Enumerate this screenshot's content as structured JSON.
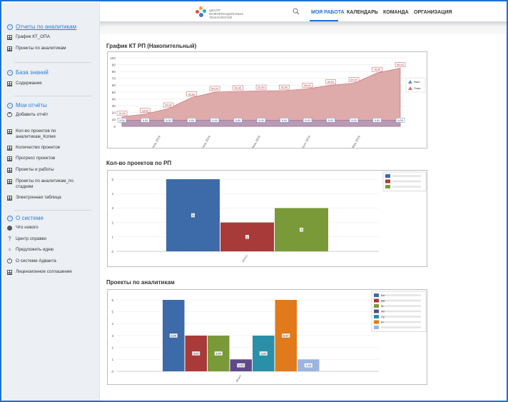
{
  "sidebar": {
    "sections": [
      {
        "title": "Отчеты по аналитикам",
        "items": [
          "График КТ_ОПА",
          "Проекты по аналитикам"
        ]
      },
      {
        "title": "База знаний",
        "items": [
          "Содержание"
        ]
      },
      {
        "title": "Мои отчёты",
        "items": [
          "Добавить отчёт",
          "Кол-во проектов по",
          "аналитикам_Копия",
          "Количество проектов",
          "Прогресс проектов",
          "Проекты и работы",
          "Проекты по аналитикам_по",
          "стадиям",
          "Электронная таблица"
        ]
      },
      {
        "title": "О системе",
        "items": [
          "Что нового",
          "Центр справки",
          "Предложить идею",
          "О системе Адванта",
          "Лицензионное соглашение"
        ]
      }
    ]
  },
  "header": {
    "logo_lines": [
      "ЦЕНТР",
      "ИНФОРМАЦИОННЫХ",
      "ТЕХНОЛОГИЙ"
    ],
    "nav": [
      "МОЯ РАБОТА",
      "КАЛЕНДАРЬ",
      "КОМАНДА",
      "ОРГАНИЗАЦИЯ"
    ],
    "search_icon": "search-icon"
  },
  "colors": {
    "accent": "#1e6fd9",
    "sidebar_link": "#2a7fd4",
    "plan_fill": "#d9a6a6",
    "fact_fill": "#b8a0b8"
  },
  "chart_data": [
    {
      "type": "area",
      "title": "График КТ РП (Накопительный)",
      "ylim": [
        0,
        100
      ],
      "yticks": [
        0,
        10,
        20,
        30,
        40,
        50,
        60,
        70,
        80,
        90,
        100
      ],
      "x_tick_labels": [
        "Февраль 2019",
        "Апрель 2019",
        "Июнь 2019",
        "Август 2019",
        "Октябрь 2019"
      ],
      "legend": [
        "Факт",
        "План"
      ],
      "series": [
        {
          "name": "План",
          "values": [
            14,
            18,
            26,
            42,
            50,
            51,
            52,
            52,
            55,
            60,
            63,
            78,
            85
          ],
          "labels": [
            "14,00",
            "18,00",
            "26,00",
            "42,00",
            "50,00",
            "51,00",
            "52,00",
            "52,00",
            "55,00",
            "60,00",
            "63,00",
            "78,00",
            "85,00"
          ]
        },
        {
          "name": "Факт",
          "values": [
            9,
            9,
            9,
            9,
            9,
            9,
            9,
            9,
            9,
            9,
            9,
            9,
            9
          ],
          "labels": [
            "9,00",
            "9,00",
            "9,00",
            "9,00",
            "9,00",
            "9,00",
            "9,00",
            "9,00",
            "9,00",
            "9,00",
            "9,00",
            "9,00",
            "9,00"
          ]
        }
      ]
    },
    {
      "type": "bar",
      "title": "Кол-во проектов по РП",
      "ylim": [
        0,
        5
      ],
      "yticks": [
        0,
        1,
        2,
        3,
        4,
        5
      ],
      "categories": [
        "Итого"
      ],
      "series": [
        {
          "values": [
            5
          ],
          "label": "5",
          "color": "#3d6aa8"
        },
        {
          "values": [
            2
          ],
          "label": "2",
          "color": "#a83a3a"
        },
        {
          "values": [
            3
          ],
          "label": "3",
          "color": "#7a9a3a"
        }
      ]
    },
    {
      "type": "bar",
      "title": "Проекты по аналитикам",
      "ylim": [
        0,
        6
      ],
      "yticks": [
        0,
        1,
        2,
        3,
        4,
        5,
        6
      ],
      "categories": [
        "Итого"
      ],
      "series": [
        {
          "values": [
            6
          ],
          "label": "6,00",
          "color": "#3d6aa8"
        },
        {
          "values": [
            3
          ],
          "label": "3,00",
          "color": "#a83a3a"
        },
        {
          "values": [
            3
          ],
          "label": "3,00",
          "color": "#7a9a3a"
        },
        {
          "values": [
            1
          ],
          "label": "1,00",
          "color": "#5e4a8a"
        },
        {
          "values": [
            3
          ],
          "label": "3,00",
          "color": "#2a8fa8"
        },
        {
          "values": [
            6
          ],
          "label": "6,00",
          "color": "#e07a1a"
        },
        {
          "values": [
            1
          ],
          "label": "1,00",
          "color": "#9ab5e0"
        }
      ],
      "legend_prefixes": [
        "Ба",
        "Дм",
        "М",
        "Ил",
        "Су",
        "Ш",
        ""
      ]
    }
  ]
}
